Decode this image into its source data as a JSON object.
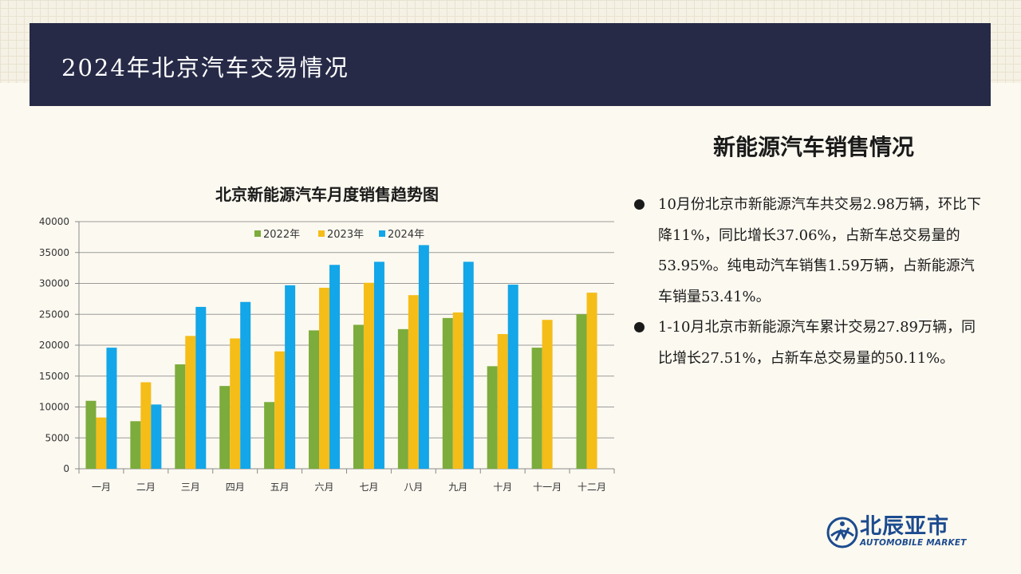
{
  "header": {
    "title": "2024年北京汽车交易情况"
  },
  "panel": {
    "title": "新能源汽车销售情况",
    "bullets": [
      "10月份北京市新能源汽车共交易2.98万辆，环比下降11%，同比增长37.06%，占新车总交易量的53.95%。纯电动汽车销售1.59万辆，占新能源汽车销量53.41%。",
      "1-10月北京市新能源汽车累计交易27.89万辆，同比增长27.51%，占新车总交易量的50.11%。"
    ]
  },
  "logo": {
    "name": "北辰亚市",
    "sub": "AUTOMOBILE MARKET",
    "color": "#1c4b8f"
  },
  "chart_data": {
    "type": "bar",
    "title": "北京新能源汽车月度销售趋势图",
    "categories": [
      "一月",
      "二月",
      "三月",
      "四月",
      "五月",
      "六月",
      "七月",
      "八月",
      "九月",
      "十月",
      "十一月",
      "十二月"
    ],
    "series": [
      {
        "name": "2022年",
        "color": "#7cac3c",
        "values": [
          11000,
          7700,
          16900,
          13400,
          10800,
          22400,
          23300,
          22600,
          24400,
          16600,
          19600,
          25000
        ]
      },
      {
        "name": "2023年",
        "color": "#f5bd17",
        "values": [
          8300,
          14000,
          21500,
          21100,
          19000,
          29300,
          30100,
          28100,
          25300,
          21800,
          24100,
          28500
        ]
      },
      {
        "name": "2024年",
        "color": "#13a6e8",
        "values": [
          19600,
          10400,
          26200,
          27000,
          29700,
          33000,
          33500,
          36200,
          33500,
          29800,
          null,
          null
        ]
      }
    ],
    "ylim": [
      0,
      40000
    ],
    "yticks": [
      0,
      5000,
      10000,
      15000,
      20000,
      25000,
      30000,
      35000,
      40000
    ],
    "grid": true,
    "legend": "top-center"
  }
}
